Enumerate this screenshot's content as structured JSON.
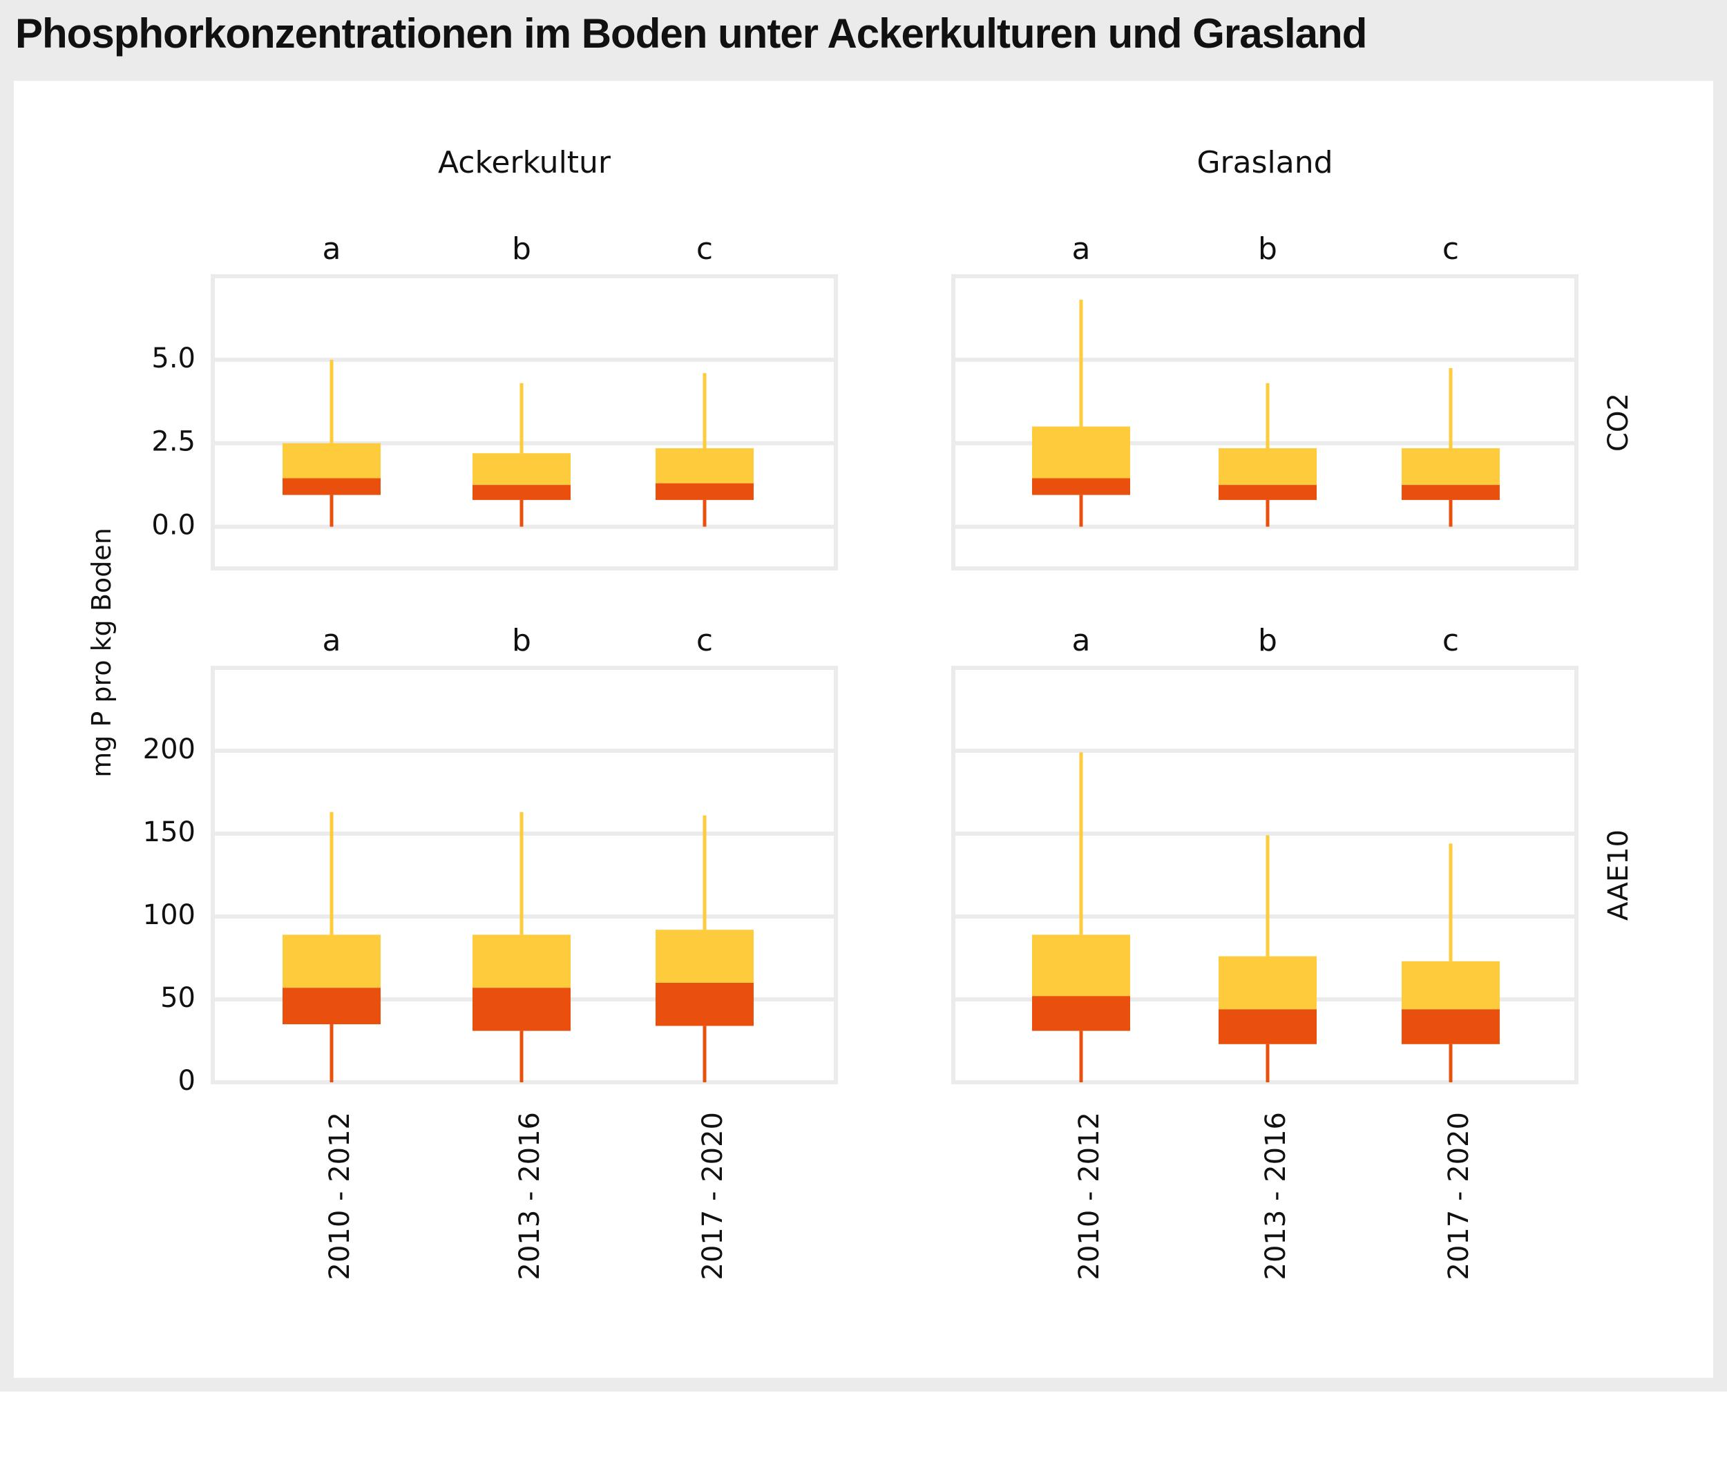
{
  "title": "Phosphorkonzentrationen im Boden unter Ackerkulturen und Grasland",
  "colors": {
    "upper_box": "#fdcb3b",
    "lower_box": "#e9500e",
    "upper_whisker": "#fdcb3b",
    "lower_whisker": "#e9500e",
    "grid": "#ebebeb",
    "background": "#ebebeb"
  },
  "chart_data": {
    "type": "boxplot",
    "ylabel": "mg P pro kg Boden",
    "columns": [
      "Ackerkultur",
      "Grasland"
    ],
    "rows": [
      {
        "name": "CO2",
        "ylim": [
          -1.25,
          7.5
        ],
        "yticks": [
          0,
          2.5,
          5
        ],
        "ytick_labels": [
          "0.0",
          "2.5",
          "5.0"
        ]
      },
      {
        "name": "AAE10",
        "ylim": [
          0,
          250
        ],
        "yticks": [
          0,
          50,
          100,
          150,
          200
        ],
        "ytick_labels": [
          "0",
          "50",
          "100",
          "150",
          "200"
        ]
      }
    ],
    "categories": [
      "2010 - 2012",
      "2013 - 2016",
      "2017 - 2020"
    ],
    "letters": [
      "a",
      "b",
      "c"
    ],
    "panels": [
      {
        "row": "CO2",
        "column": "Ackerkultur",
        "boxes": [
          {
            "category": "2010 - 2012",
            "min": 0.0,
            "q1": 0.95,
            "median": 1.45,
            "q3": 2.5,
            "max": 5.0
          },
          {
            "category": "2013 - 2016",
            "min": 0.0,
            "q1": 0.8,
            "median": 1.25,
            "q3": 2.2,
            "max": 4.3
          },
          {
            "category": "2017 - 2020",
            "min": 0.0,
            "q1": 0.8,
            "median": 1.3,
            "q3": 2.35,
            "max": 4.6
          }
        ]
      },
      {
        "row": "CO2",
        "column": "Grasland",
        "boxes": [
          {
            "category": "2010 - 2012",
            "min": 0.0,
            "q1": 0.95,
            "median": 1.45,
            "q3": 3.0,
            "max": 6.8
          },
          {
            "category": "2013 - 2016",
            "min": 0.0,
            "q1": 0.8,
            "median": 1.25,
            "q3": 2.35,
            "max": 4.3
          },
          {
            "category": "2017 - 2020",
            "min": 0.0,
            "q1": 0.8,
            "median": 1.25,
            "q3": 2.35,
            "max": 4.75
          }
        ]
      },
      {
        "row": "AAE10",
        "column": "Ackerkultur",
        "boxes": [
          {
            "category": "2010 - 2012",
            "min": 0,
            "q1": 35,
            "median": 57,
            "q3": 89,
            "max": 163
          },
          {
            "category": "2013 - 2016",
            "min": 0,
            "q1": 31,
            "median": 57,
            "q3": 89,
            "max": 163
          },
          {
            "category": "2017 - 2020",
            "min": 0,
            "q1": 34,
            "median": 60,
            "q3": 92,
            "max": 161
          }
        ]
      },
      {
        "row": "AAE10",
        "column": "Grasland",
        "boxes": [
          {
            "category": "2010 - 2012",
            "min": 0,
            "q1": 31,
            "median": 52,
            "q3": 89,
            "max": 199
          },
          {
            "category": "2013 - 2016",
            "min": 0,
            "q1": 23,
            "median": 44,
            "q3": 76,
            "max": 149
          },
          {
            "category": "2017 - 2020",
            "min": 0,
            "q1": 23,
            "median": 44,
            "q3": 73,
            "max": 144
          }
        ]
      }
    ]
  }
}
